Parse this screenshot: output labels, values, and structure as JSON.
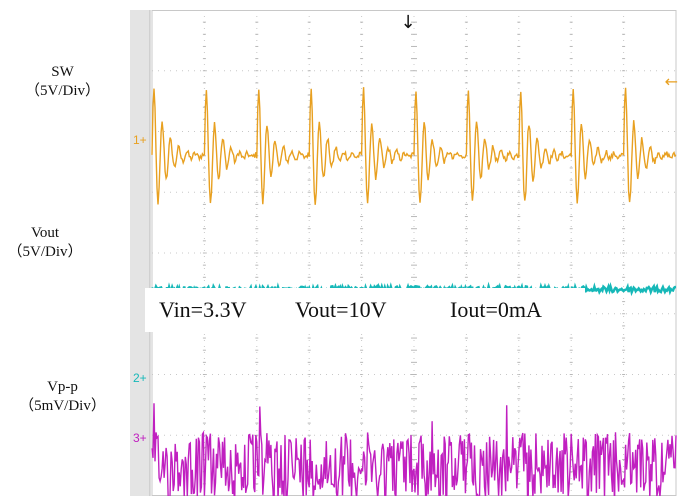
{
  "chart_data": {
    "type": "line",
    "x_divisions": 10,
    "y_divisions": 8,
    "grid": true,
    "channels": [
      {
        "label": "SW",
        "scale": "（5V/Div）",
        "marker": "1",
        "color": "#e8a020",
        "baseline_div": 5.6,
        "waveform": "switching ringing",
        "amplitude_div": 1.3
      },
      {
        "label": "Vout",
        "scale": "（5V/Div）",
        "marker": "2",
        "color": "#16b8b8",
        "baseline_div": 3.4,
        "waveform": "flat dc",
        "amplitude_div": 0.05
      },
      {
        "label": "Vp-p",
        "scale": "（5mV/Div）",
        "marker": "3",
        "color": "#c020c0",
        "baseline_div": 0.5,
        "waveform": "ripple noise",
        "amplitude_div": 0.55
      }
    ],
    "annotations": [
      "Vin=3.3V",
      "Vout=10V",
      "Iout=0mA"
    ],
    "trigger_marker": "↓",
    "trigger_level_marker": "←"
  }
}
